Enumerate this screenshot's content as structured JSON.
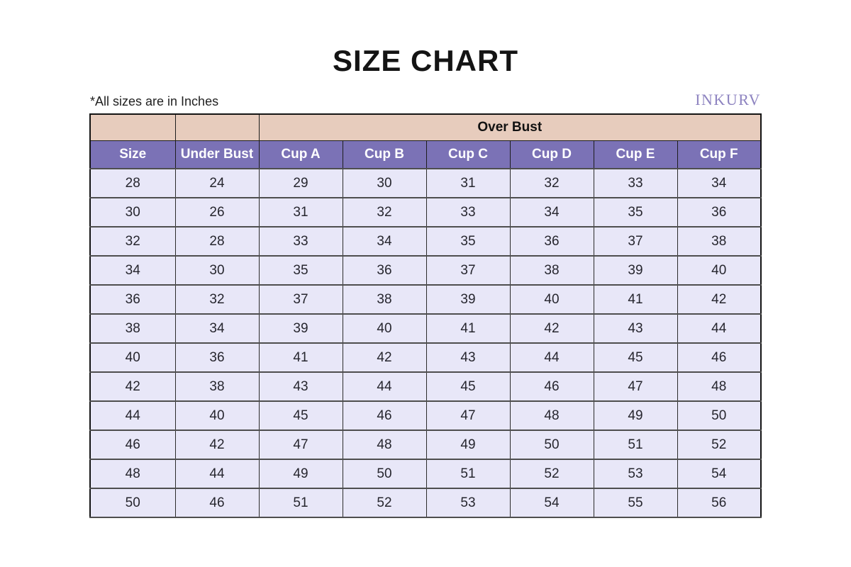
{
  "page": {
    "title": "SIZE CHART",
    "note": "*All sizes are in Inches",
    "brand": "INKURV"
  },
  "colors": {
    "peach": "#e7ccbd",
    "header_purple": "#7b72b6",
    "cell_lavender": "#e8e7f8",
    "header_text": "#ffffff",
    "brand_purple": "#8d83c0"
  },
  "chart_data": {
    "type": "table",
    "title": "SIZE CHART",
    "note": "*All sizes are in Inches",
    "brand": "INKURV",
    "group_header": {
      "label": "Over Bust",
      "span_columns": [
        "Cup A",
        "Cup B",
        "Cup C",
        "Cup D",
        "Cup E",
        "Cup F"
      ]
    },
    "columns": [
      "Size",
      "Under Bust",
      "Cup A",
      "Cup B",
      "Cup C",
      "Cup D",
      "Cup E",
      "Cup F"
    ],
    "rows": [
      [
        28,
        24,
        29,
        30,
        31,
        32,
        33,
        34
      ],
      [
        30,
        26,
        31,
        32,
        33,
        34,
        35,
        36
      ],
      [
        32,
        28,
        33,
        34,
        35,
        36,
        37,
        38
      ],
      [
        34,
        30,
        35,
        36,
        37,
        38,
        39,
        40
      ],
      [
        36,
        32,
        37,
        38,
        39,
        40,
        41,
        42
      ],
      [
        38,
        34,
        39,
        40,
        41,
        42,
        43,
        44
      ],
      [
        40,
        36,
        41,
        42,
        43,
        44,
        45,
        46
      ],
      [
        42,
        38,
        43,
        44,
        45,
        46,
        47,
        48
      ],
      [
        44,
        40,
        45,
        46,
        47,
        48,
        49,
        50
      ],
      [
        46,
        42,
        47,
        48,
        49,
        50,
        51,
        52
      ],
      [
        48,
        44,
        49,
        50,
        51,
        52,
        53,
        54
      ],
      [
        50,
        46,
        51,
        52,
        53,
        54,
        55,
        56
      ]
    ],
    "units": "Inches"
  }
}
